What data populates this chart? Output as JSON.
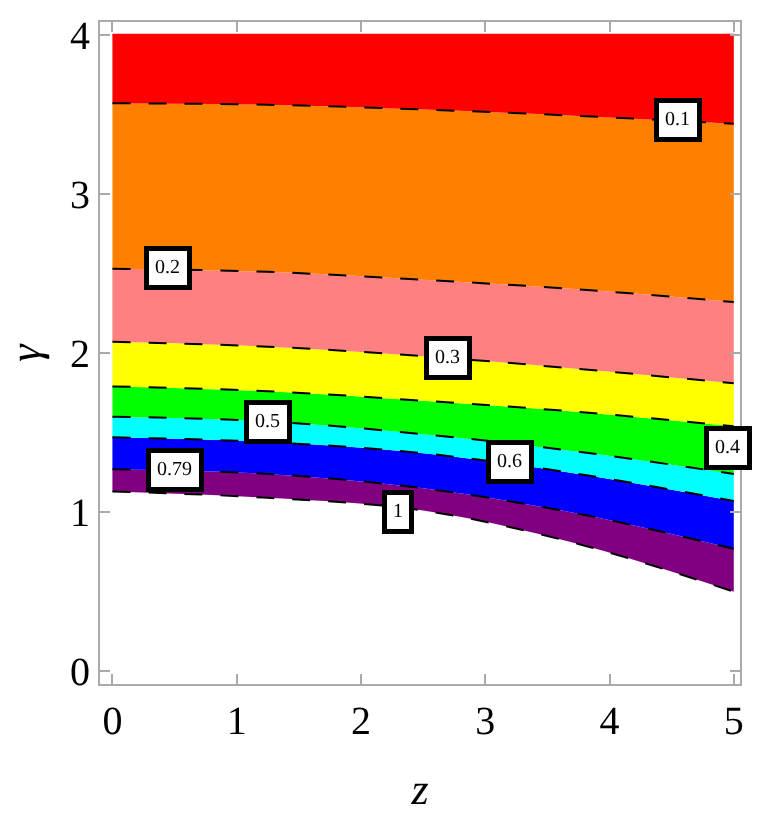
{
  "chart_data": {
    "type": "area",
    "xlabel": "z",
    "ylabel": "γ",
    "x": [
      0,
      1.25,
      2.5,
      3.75,
      5
    ],
    "series": [
      {
        "type": "line",
        "color": "#000000",
        "line_style": "dashed",
        "values": [
          1.13,
          1.09,
          1.01,
          0.8,
          0.5
        ]
      },
      {
        "color": "#800080",
        "line_style": "dashed",
        "values": [
          1.27,
          1.24,
          1.15,
          0.99,
          0.77
        ]
      },
      {
        "color": "#0000ff",
        "line_style": "dashed",
        "values": [
          1.47,
          1.44,
          1.37,
          1.24,
          1.07
        ]
      },
      {
        "color": "#00ffff",
        "line_style": "dashed",
        "values": [
          1.6,
          1.57,
          1.49,
          1.38,
          1.24
        ]
      },
      {
        "color": "#00ff00",
        "line_style": "dashed",
        "values": [
          1.79,
          1.76,
          1.7,
          1.63,
          1.54
        ]
      },
      {
        "color": "#ffff00",
        "line_style": "dashed",
        "values": [
          2.07,
          2.04,
          1.98,
          1.9,
          1.81
        ]
      },
      {
        "color": "#ff8080",
        "line_style": "dashed",
        "values": [
          2.53,
          2.51,
          2.46,
          2.4,
          2.32
        ]
      },
      {
        "color": "#ff8000",
        "line_style": "dashed",
        "values": [
          3.57,
          3.56,
          3.53,
          3.49,
          3.44
        ]
      },
      {
        "color": "#ff0000",
        "line_style": "solid",
        "values": [
          4,
          4,
          4,
          4,
          4
        ]
      }
    ],
    "annotations": [
      {
        "text": "0.1",
        "x": 4.55,
        "y": 3.47
      },
      {
        "text": "0.2",
        "x": 0.45,
        "y": 2.53
      },
      {
        "text": "0.3",
        "x": 2.7,
        "y": 1.97
      },
      {
        "text": "0.4",
        "x": 4.95,
        "y": 1.4
      },
      {
        "text": "0.5",
        "x": 1.25,
        "y": 1.57
      },
      {
        "text": "0.6",
        "x": 3.2,
        "y": 1.31
      },
      {
        "text": "0.79",
        "x": 0.5,
        "y": 1.26
      },
      {
        "text": "1",
        "x": 2.3,
        "y": 1.0
      }
    ],
    "xlim": [
      -0.1,
      5.05
    ],
    "ylim": [
      -0.08,
      4.08
    ],
    "xticks": [
      0,
      1,
      2,
      3,
      4,
      5
    ],
    "yticks": [
      0,
      1,
      2,
      3,
      4
    ]
  }
}
